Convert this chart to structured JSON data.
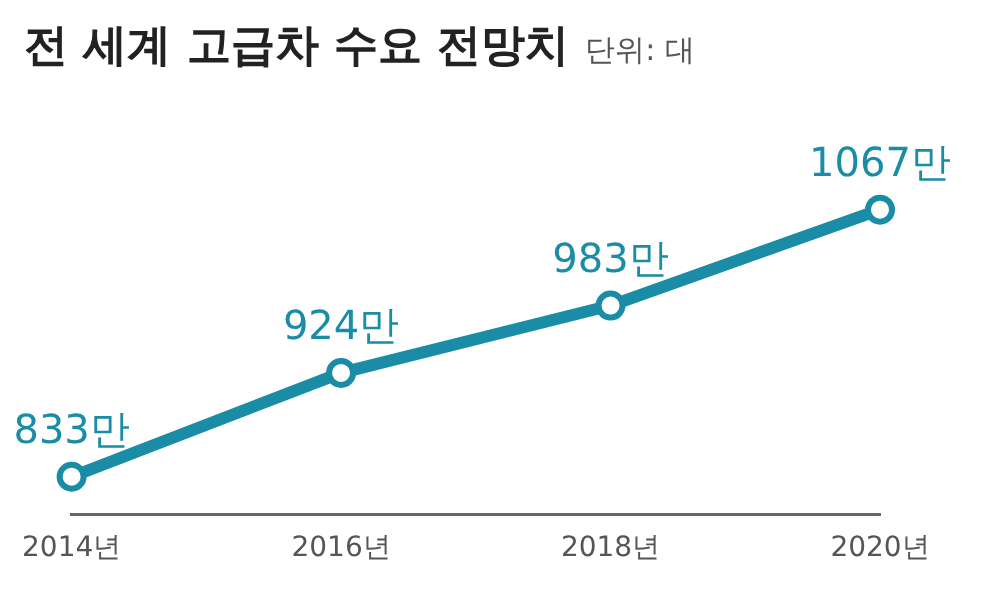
{
  "chart_data": {
    "type": "line",
    "title": "전 세계 고급차 수요 전망치",
    "subtitle": "단위: 대",
    "categories": [
      "2014년",
      "2016년",
      "2018년",
      "2020년"
    ],
    "series": [
      {
        "color": "#1b8ca6",
        "values": [
          833,
          924,
          983,
          1067
        ],
        "value_labels": [
          "833만",
          "924만",
          "983만",
          "1067만"
        ]
      }
    ],
    "marker": "circle",
    "line_style": "solid",
    "grid": false,
    "legend": false
  }
}
